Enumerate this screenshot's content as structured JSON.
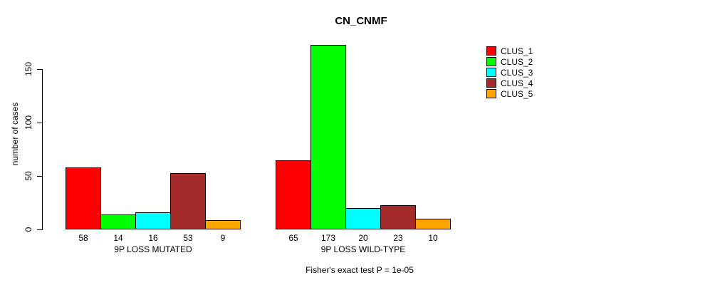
{
  "title": "CN_CNMF",
  "caption": "Fisher's exact test P = 1e-05",
  "chart_data": {
    "type": "bar",
    "title": "CN_CNMF",
    "ylabel": "number of cases",
    "xlabel": "",
    "yticks": [
      0,
      50,
      100,
      150
    ],
    "ylim": [
      0,
      175
    ],
    "grid": false,
    "legend_position": "right-inside",
    "bar_border_color": "#000000",
    "categories": [
      "9P LOSS MUTATED",
      "9P LOSS WILD-TYPE"
    ],
    "series": [
      {
        "name": "CLUS_1",
        "color": "#ff0000",
        "values": [
          58,
          65
        ]
      },
      {
        "name": "CLUS_2",
        "color": "#00ff00",
        "values": [
          14,
          173
        ]
      },
      {
        "name": "CLUS_3",
        "color": "#00ffff",
        "values": [
          16,
          20
        ]
      },
      {
        "name": "CLUS_4",
        "color": "#a52a2a",
        "values": [
          53,
          23
        ]
      },
      {
        "name": "CLUS_5",
        "color": "#ffa500",
        "values": [
          9,
          10
        ]
      }
    ],
    "bar_value_labels": [
      [
        58,
        14,
        16,
        53,
        9
      ],
      [
        65,
        173,
        20,
        23,
        10
      ]
    ],
    "annotation": "Fisher's exact test P = 1e-05"
  }
}
